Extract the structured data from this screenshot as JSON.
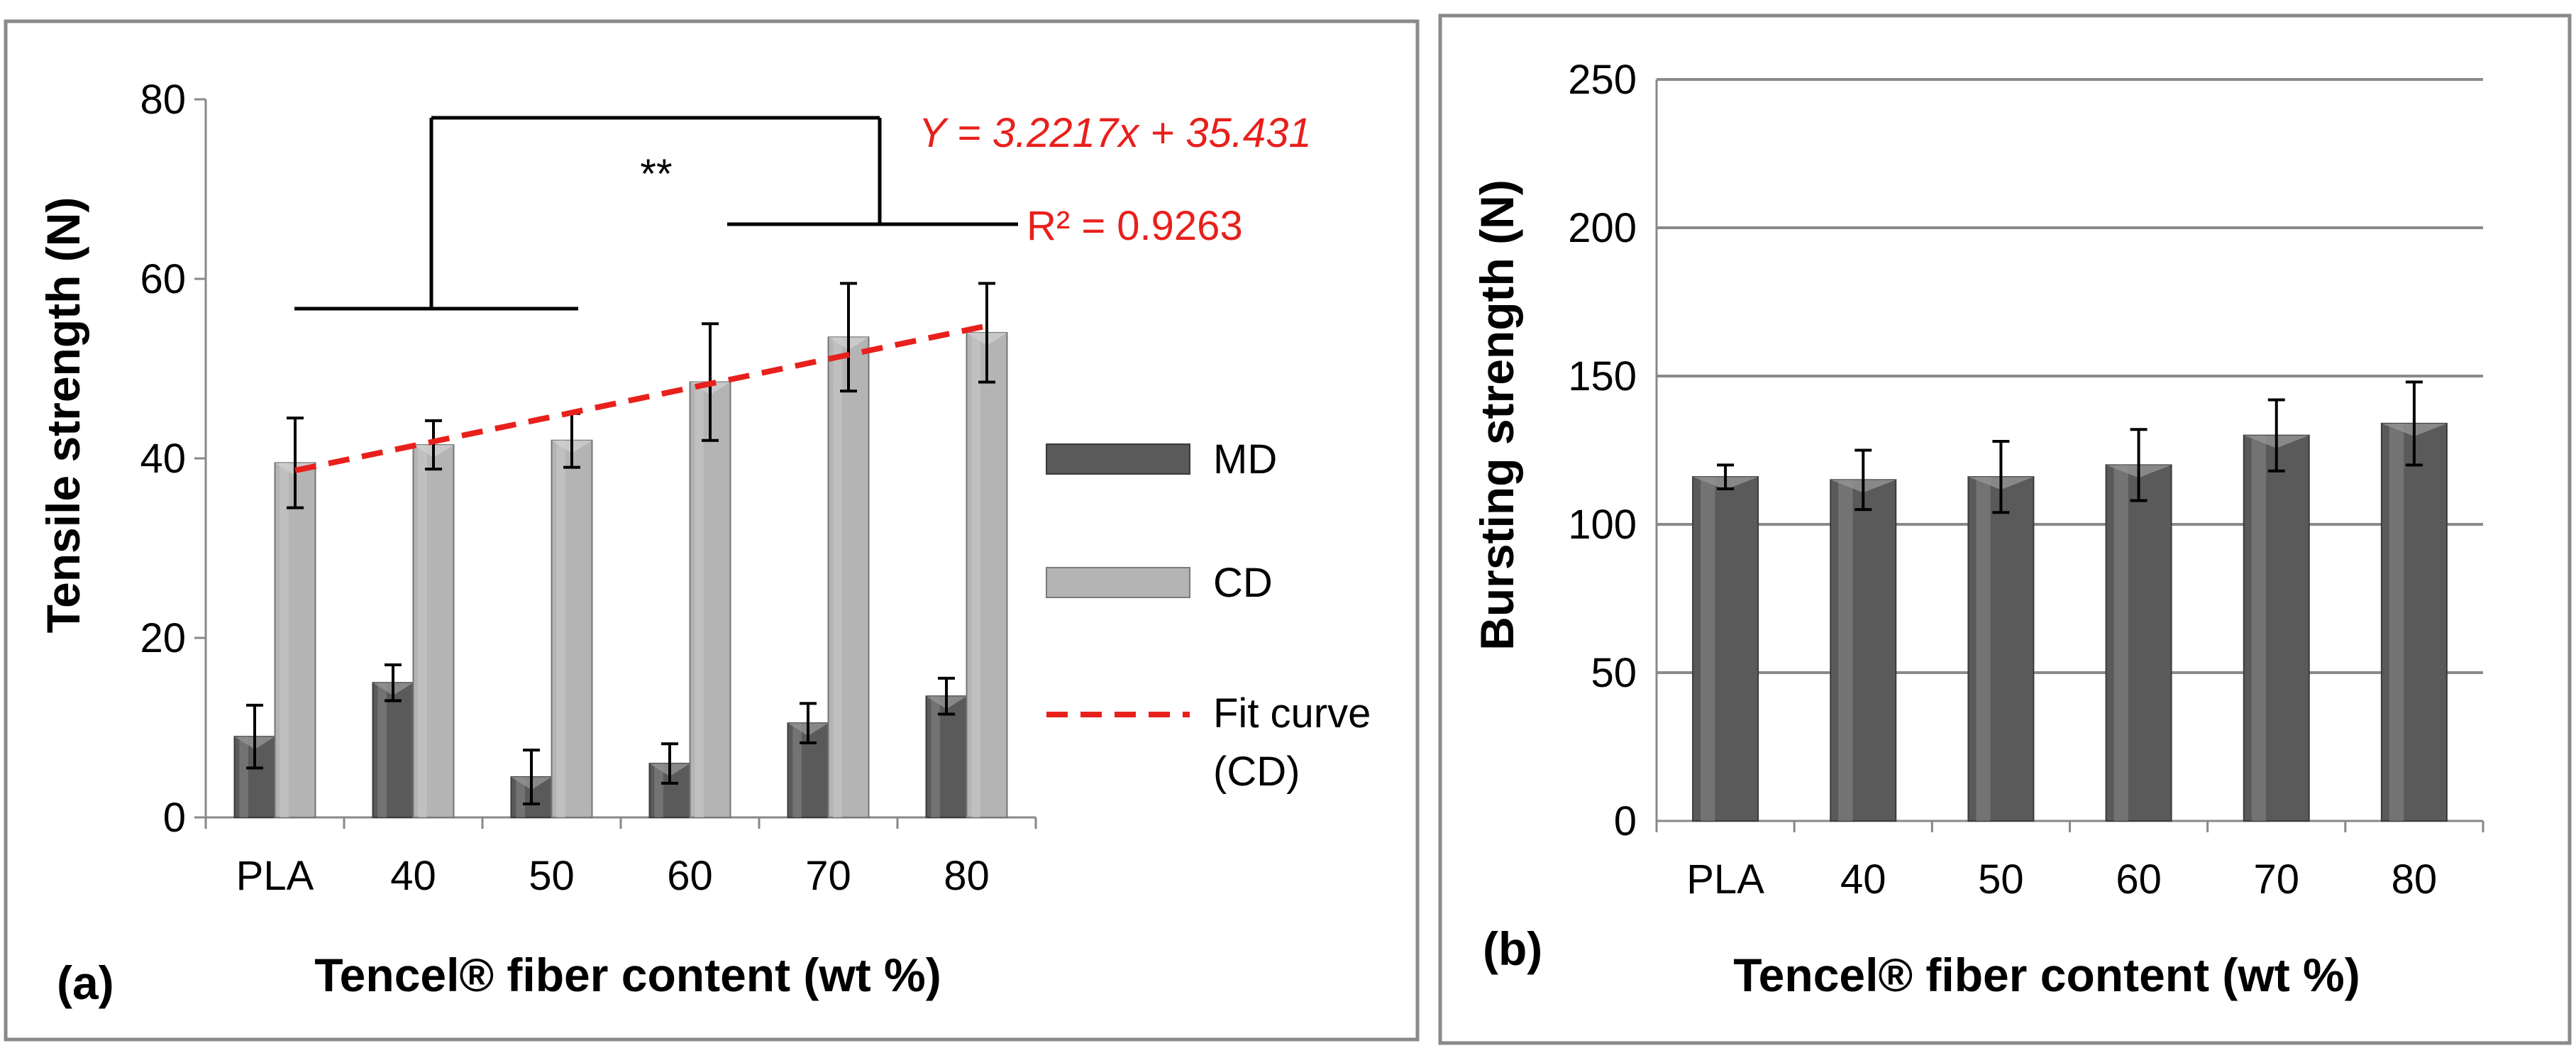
{
  "chart_data": [
    {
      "panel_label": "(a)",
      "type": "bar",
      "categories": [
        "PLA",
        "40",
        "50",
        "60",
        "70",
        "80"
      ],
      "ylabel": "Tensile strength (N)",
      "xlabel": "Tencel® fiber content (wt %)",
      "ylim": [
        0,
        80
      ],
      "yticks": [
        "0",
        "20",
        "40",
        "60",
        "80"
      ],
      "grid": false,
      "legend_position": "right",
      "series": [
        {
          "name": "MD",
          "values": [
            9,
            15,
            4.5,
            6,
            10.5,
            13.5
          ],
          "errors": [
            3.5,
            2,
            3,
            2.2,
            2.2,
            2
          ],
          "color": "#5a5a5a"
        },
        {
          "name": "CD",
          "values": [
            39.5,
            41.5,
            42,
            48.5,
            53.5,
            54
          ],
          "errors": [
            5,
            2.7,
            3,
            6.5,
            6,
            5.5
          ],
          "color": "#b4b4b4"
        }
      ],
      "fit": {
        "name": "Fit curve (CD)",
        "name_lines": [
          "Fit curve",
          "(CD)"
        ],
        "slope": 3.2217,
        "intercept": 35.431,
        "color": "#e8201c"
      },
      "annotations": {
        "equation": "Y = 3.2217x + 35.431",
        "r_squared": "R² = 0.9263",
        "significance": "**"
      }
    },
    {
      "panel_label": "(b)",
      "type": "bar",
      "categories": [
        "PLA",
        "40",
        "50",
        "60",
        "70",
        "80"
      ],
      "ylabel": "Bursting strength (N)",
      "xlabel": "Tencel® fiber content (wt %)",
      "ylim": [
        0,
        250
      ],
      "yticks": [
        "0",
        "50",
        "100",
        "150",
        "200",
        "250"
      ],
      "grid": true,
      "series": [
        {
          "values": [
            116,
            115,
            116,
            120,
            130,
            134
          ],
          "errors": [
            4,
            10,
            12,
            12,
            12,
            14
          ],
          "color": "#5a5a5a"
        }
      ]
    }
  ]
}
